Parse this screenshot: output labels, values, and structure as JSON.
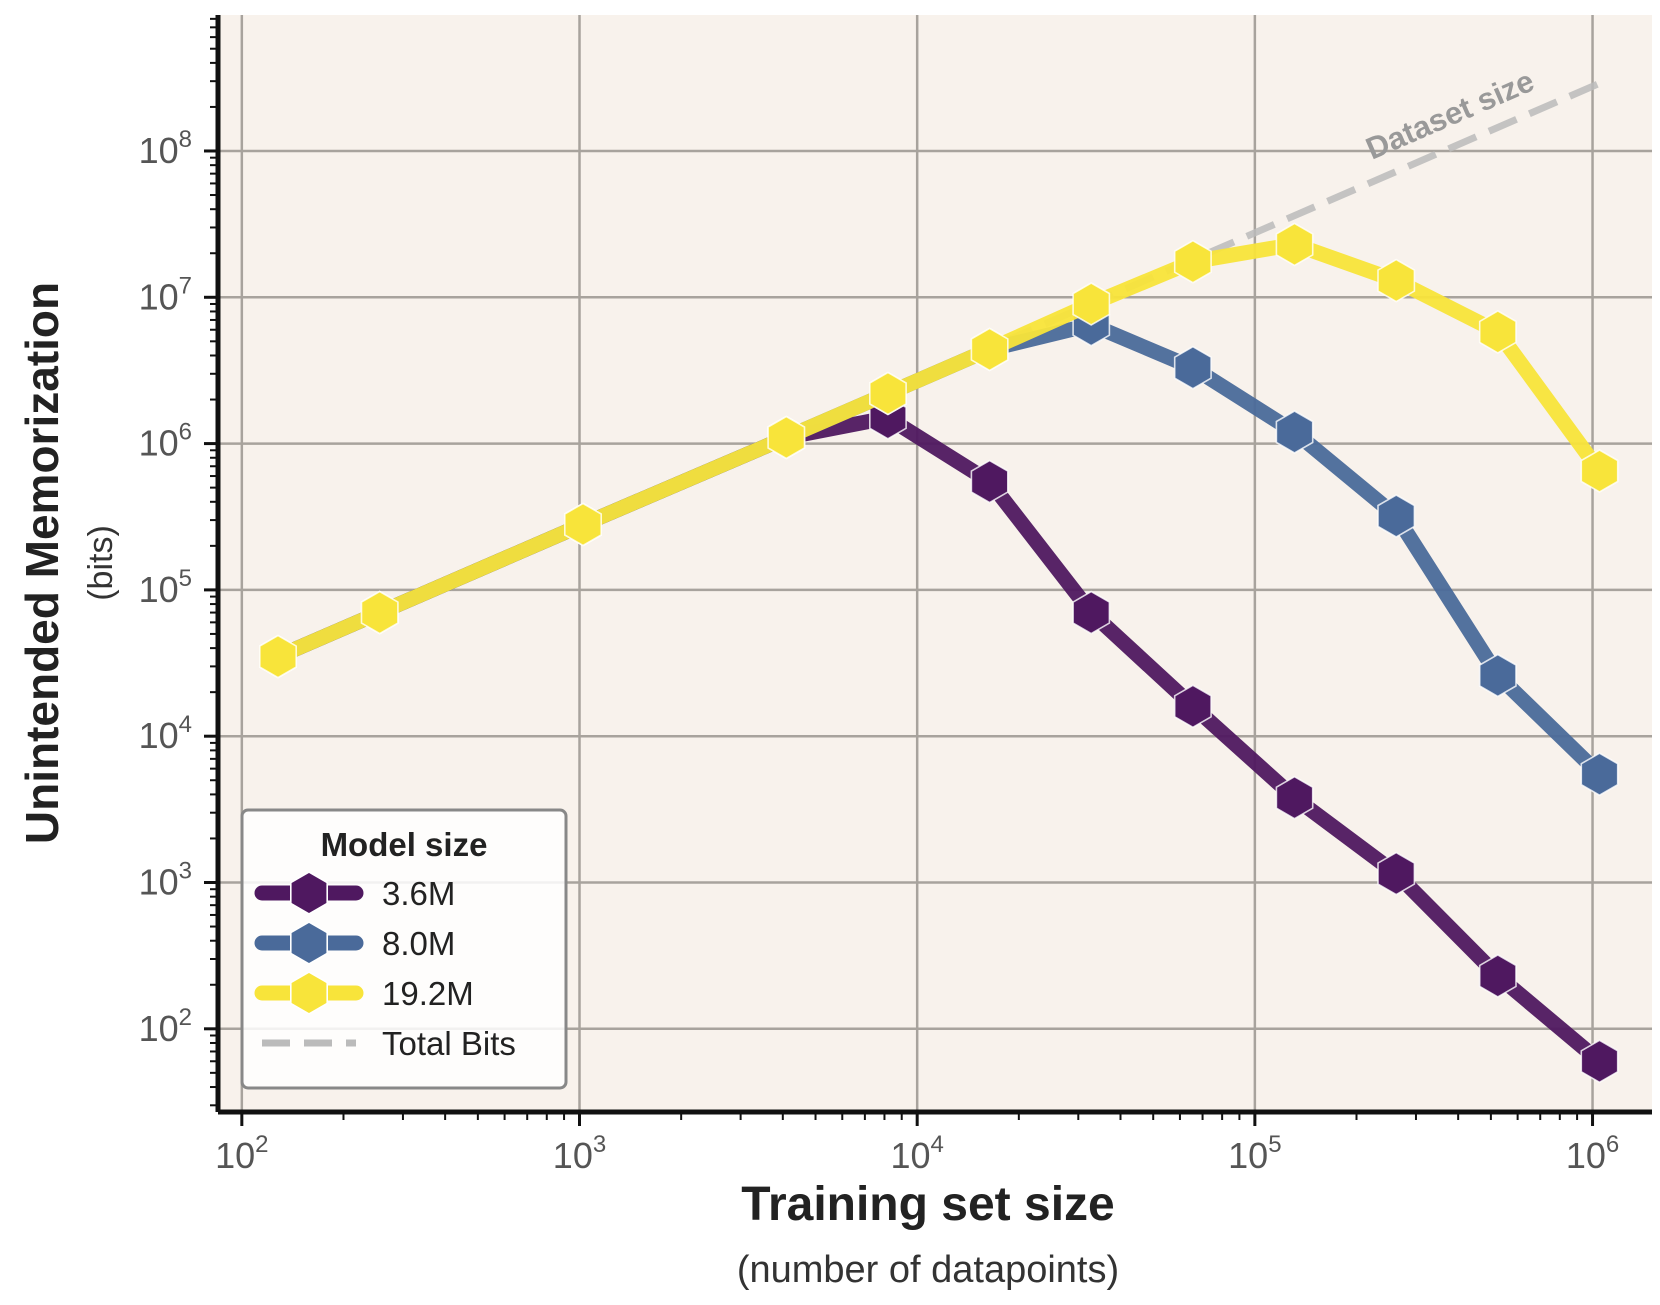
{
  "chart_data": {
    "type": "line",
    "title": "",
    "xlabel": "Training set size",
    "xlabel_sub": "(number of datapoints)",
    "ylabel": "Unintended Memorization",
    "ylabel_sub": "(bits)",
    "xscale": "log",
    "yscale": "log",
    "xlim": [
      85,
      1500000
    ],
    "ylim": [
      27,
      850000000
    ],
    "x_ticks": [
      {
        "base": "10",
        "exp": "2",
        "value": 100
      },
      {
        "base": "10",
        "exp": "3",
        "value": 1000
      },
      {
        "base": "10",
        "exp": "4",
        "value": 10000
      },
      {
        "base": "10",
        "exp": "5",
        "value": 100000
      },
      {
        "base": "10",
        "exp": "6",
        "value": 1000000
      }
    ],
    "y_ticks": [
      {
        "base": "10",
        "exp": "2",
        "value": 100
      },
      {
        "base": "10",
        "exp": "3",
        "value": 1000
      },
      {
        "base": "10",
        "exp": "4",
        "value": 10000
      },
      {
        "base": "10",
        "exp": "5",
        "value": 100000
      },
      {
        "base": "10",
        "exp": "6",
        "value": 1000000
      },
      {
        "base": "10",
        "exp": "7",
        "value": 10000000
      },
      {
        "base": "10",
        "exp": "8",
        "value": 100000000
      }
    ],
    "grid": true,
    "background_color": "#f8f2ec",
    "series": [
      {
        "name": "3.6M",
        "color": "#4f1860",
        "x": [
          128,
          256,
          1024,
          4096,
          8192,
          16384,
          32768,
          65536,
          131072,
          262144,
          524288,
          1048576
        ],
        "values": [
          35000,
          70000,
          280000,
          1100000,
          1500000,
          550000,
          70000,
          16000,
          3800,
          1150,
          230,
          60
        ]
      },
      {
        "name": "8.0M",
        "color": "#4a6a9a",
        "x": [
          128,
          256,
          1024,
          4096,
          8192,
          16384,
          32768,
          65536,
          131072,
          262144,
          524288,
          1048576
        ],
        "values": [
          35000,
          70000,
          280000,
          1100000,
          2200000,
          4400000,
          6500000,
          3300000,
          1200000,
          320000,
          26000,
          5500
        ]
      },
      {
        "name": "19.2M",
        "color": "#f8e43a",
        "x": [
          128,
          256,
          1024,
          4096,
          8192,
          16384,
          32768,
          65536,
          131072,
          262144,
          524288,
          1048576
        ],
        "values": [
          35000,
          70000,
          280000,
          1100000,
          2200000,
          4400000,
          9000000,
          17500000,
          23000000,
          13000000,
          5800000,
          650000
        ]
      }
    ],
    "reference_line": {
      "name": "Total Bits",
      "color": "#bbbbbb",
      "style": "dashed",
      "x": [
        128,
        1048576
      ],
      "values": [
        35000,
        290000000
      ],
      "annotation": "Dataset size"
    },
    "legend": {
      "title": "Model size",
      "position": "bottom-left",
      "entries": [
        "3.6M",
        "8.0M",
        "19.2M",
        "Total Bits"
      ]
    }
  }
}
